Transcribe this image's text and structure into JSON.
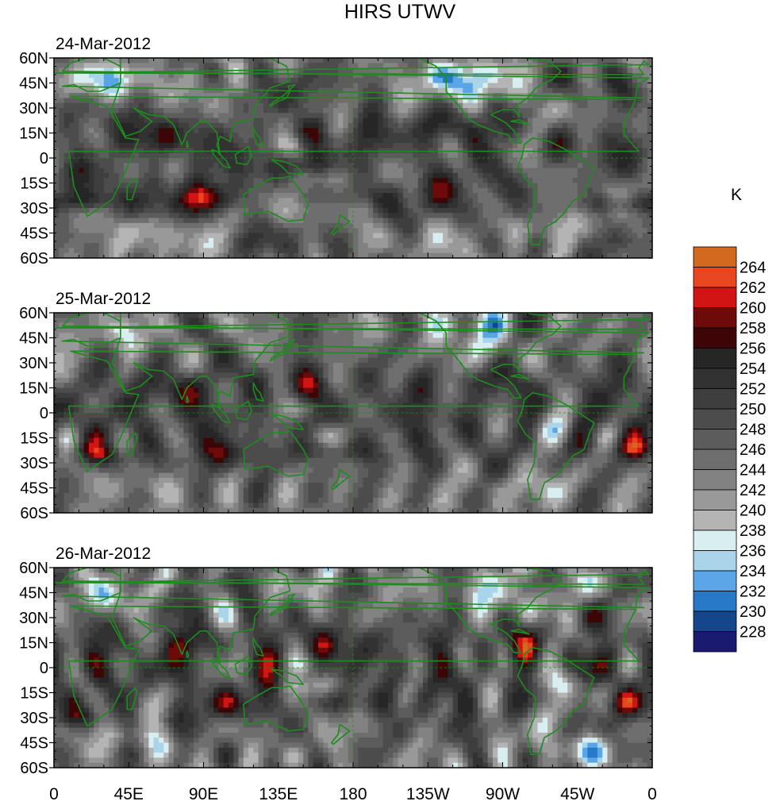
{
  "title": "HIRS UTWV",
  "unit_label": "K",
  "panels": [
    {
      "date": "24-Mar-2012",
      "seed": 11
    },
    {
      "date": "25-Mar-2012",
      "seed": 23
    },
    {
      "date": "26-Mar-2012",
      "seed": 37
    }
  ],
  "lat_ticks": [
    "60N",
    "45N",
    "30N",
    "15N",
    "0",
    "15S",
    "30S",
    "45S",
    "60S"
  ],
  "lat_values": [
    60,
    45,
    30,
    15,
    0,
    -15,
    -30,
    -45,
    -60
  ],
  "lon_ticks": [
    "0",
    "45E",
    "90E",
    "135E",
    "180",
    "135W",
    "90W",
    "45W",
    "0"
  ],
  "lon_values": [
    0,
    45,
    90,
    135,
    180,
    225,
    270,
    315,
    360
  ],
  "colorbar": {
    "labels": [
      "228",
      "230",
      "232",
      "234",
      "236",
      "238",
      "240",
      "242",
      "244",
      "246",
      "248",
      "250",
      "252",
      "254",
      "256",
      "258",
      "260",
      "262",
      "264"
    ],
    "colors": [
      "#1a1a6e",
      "#14468c",
      "#2878c8",
      "#5aa5e6",
      "#a9d4ea",
      "#d8eef0",
      "#b4b4b4",
      "#999999",
      "#828282",
      "#6e6e6e",
      "#5c5c5c",
      "#4c4c4c",
      "#3e3e3e",
      "#323232",
      "#262626",
      "#3c0606",
      "#6e0a0a",
      "#d21414",
      "#e8461e",
      "#d2691e"
    ]
  },
  "chart_data": {
    "type": "heatmap",
    "title": "HIRS UTWV",
    "variable": "UTWV",
    "unit": "K",
    "xlim": [
      0,
      360
    ],
    "ylim": [
      -60,
      60
    ],
    "color_levels": [
      228,
      230,
      232,
      234,
      236,
      238,
      240,
      242,
      244,
      246,
      248,
      250,
      252,
      254,
      256,
      258,
      260,
      262,
      264
    ],
    "panels": [
      "24-Mar-2012",
      "25-Mar-2012",
      "26-Mar-2012"
    ]
  },
  "colors": {
    "coastline": "#1e8c1e",
    "frame": "#000000"
  }
}
